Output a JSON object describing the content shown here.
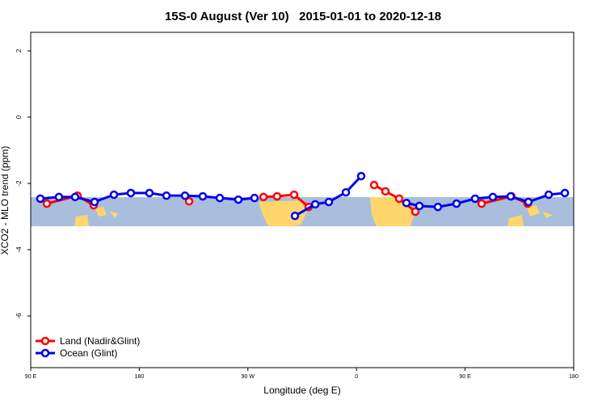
{
  "chart_data": {
    "type": "line",
    "title": "15S-0 August (Ver 10)   2015-01-01 to 2020-12-18",
    "x_label": "Longitude (deg E)",
    "y_label": "XCO2 - MLO trend (ppm)",
    "xlim": [
      90,
      540
    ],
    "ylim": [
      -7.56,
      2.56
    ],
    "xticks": [
      {
        "value": 90,
        "label": "90 E"
      },
      180,
      {
        "value": 270,
        "label": "90 W"
      },
      {
        "value": 360,
        "label": "0"
      },
      {
        "value": 450,
        "label": "90 E"
      },
      {
        "value": 540,
        "label": "180"
      }
    ],
    "yticks": [
      2,
      0,
      -2,
      -4,
      -6
    ],
    "legend": "bottom-left",
    "series": [
      {
        "name": "Land (Nadir&Glint)",
        "color": "#ff0000",
        "x": [
          103.4,
          128.8,
          142.2,
          null,
          221.3,
          null,
          282.9,
          294.2,
          308.3,
          320.4,
          null,
          374.6,
          384.0,
          395.4,
          408.8,
          null,
          463.7,
          488.4,
          501.8
        ],
        "values": [
          -2.61,
          -2.37,
          -2.66,
          null,
          -2.54,
          null,
          -2.41,
          -2.39,
          -2.34,
          -2.71,
          null,
          -2.05,
          -2.24,
          -2.46,
          -2.85,
          null,
          -2.61,
          -2.39,
          -2.61
        ]
      },
      {
        "name": "Ocean (Glint)",
        "color": "#0000ee",
        "x": [
          98.0,
          113.4,
          126.8,
          142.9,
          159.0,
          173.0,
          188.4,
          202.5,
          217.9,
          232.6,
          246.7,
          262.1,
          275.5,
          null,
          309.0,
          325.8,
          337.1,
          351.2,
          363.9,
          null,
          401.4,
          412.1,
          427.5,
          442.9,
          458.3,
          473.0,
          487.8,
          502.5,
          519.3,
          532.7
        ],
        "values": [
          -2.46,
          -2.41,
          -2.41,
          -2.56,
          -2.34,
          -2.29,
          -2.29,
          -2.37,
          -2.37,
          -2.39,
          -2.44,
          -2.49,
          -2.44,
          null,
          -2.98,
          -2.63,
          -2.56,
          -2.27,
          -1.78,
          null,
          -2.59,
          -2.68,
          -2.71,
          -2.61,
          -2.46,
          -2.41,
          -2.39,
          -2.56,
          -2.34,
          -2.29
        ]
      }
    ]
  }
}
